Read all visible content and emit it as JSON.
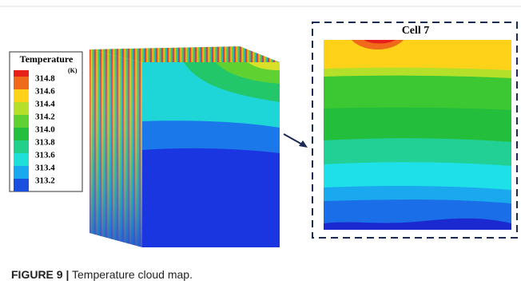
{
  "figure": {
    "legend": {
      "title": "Temperature",
      "unit": "(K)",
      "entries": [
        {
          "label": "314.8",
          "color": "#f06a1c"
        },
        {
          "label": "314.6",
          "color": "#ffd21a"
        },
        {
          "label": "314.4",
          "color": "#b5e02a"
        },
        {
          "label": "314.2",
          "color": "#5fd232"
        },
        {
          "label": "314.0",
          "color": "#22c03c"
        },
        {
          "label": "313.8",
          "color": "#22d08c"
        },
        {
          "label": "313.6",
          "color": "#1ee0d8"
        },
        {
          "label": "313.4",
          "color": "#1aa8ee"
        },
        {
          "label": "313.2",
          "color": "#1a50e0"
        }
      ]
    },
    "inset_title": "Cell 7"
  },
  "caption": {
    "label": "FIGURE 9 |",
    "text": "Temperature cloud map."
  }
}
